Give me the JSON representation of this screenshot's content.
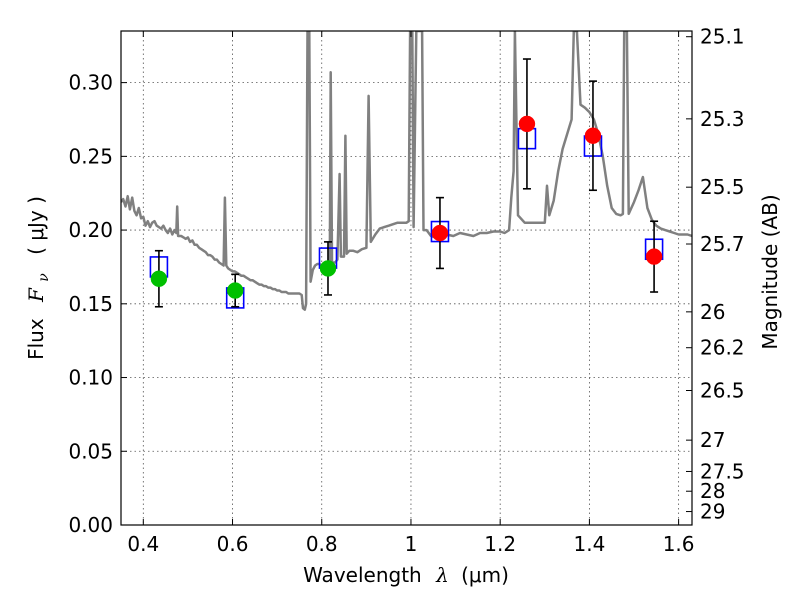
{
  "chart_data": {
    "type": "scatter",
    "xlabel_prefix": "Wavelength",
    "xlabel_symbol": "λ",
    "xlabel_unit": "(μm)",
    "ylabel_prefix": "Flux",
    "ylabel_symbol": "F",
    "ylabel_subscript": "ν",
    "ylabel_unit": "( μJy )",
    "y2label": "Magnitude (AB)",
    "xlim": [
      0.35,
      1.63
    ],
    "ylim": [
      0.0,
      0.335
    ],
    "grid": true,
    "x_ticks": [
      {
        "value": 0.4,
        "label": "0.4"
      },
      {
        "value": 0.6,
        "label": "0.6"
      },
      {
        "value": 0.8,
        "label": "0.8"
      },
      {
        "value": 1.0,
        "label": "1"
      },
      {
        "value": 1.2,
        "label": "1.2"
      },
      {
        "value": 1.4,
        "label": "1.4"
      },
      {
        "value": 1.6,
        "label": "1.6"
      }
    ],
    "y_ticks": [
      {
        "value": 0.0,
        "label": "0.00"
      },
      {
        "value": 0.05,
        "label": "0.05"
      },
      {
        "value": 0.1,
        "label": "0.10"
      },
      {
        "value": 0.15,
        "label": "0.15"
      },
      {
        "value": 0.2,
        "label": "0.20"
      },
      {
        "value": 0.25,
        "label": "0.25"
      },
      {
        "value": 0.3,
        "label": "0.30"
      }
    ],
    "mag_ticks": [
      {
        "value": 25.1,
        "label": "25.1"
      },
      {
        "value": 25.3,
        "label": "25.3"
      },
      {
        "value": 25.5,
        "label": "25.5"
      },
      {
        "value": 25.7,
        "label": "25.7"
      },
      {
        "value": 26.0,
        "label": "26"
      },
      {
        "value": 26.2,
        "label": "26.2"
      },
      {
        "value": 26.5,
        "label": "26.5"
      },
      {
        "value": 27.0,
        "label": "27"
      },
      {
        "value": 27.5,
        "label": "27.5"
      },
      {
        "value": 28.0,
        "label": "28"
      },
      {
        "value": 29.0,
        "label": "29"
      }
    ],
    "observed": [
      {
        "x": 0.435,
        "y": 0.167,
        "err": 0.019,
        "color": "#00c000"
      },
      {
        "x": 0.606,
        "y": 0.159,
        "err": 0.011,
        "color": "#00c000"
      },
      {
        "x": 0.814,
        "y": 0.174,
        "err": 0.018,
        "color": "#00c000"
      },
      {
        "x": 1.065,
        "y": 0.198,
        "err": 0.024,
        "color": "#ff0000"
      },
      {
        "x": 1.26,
        "y": 0.272,
        "err": 0.044,
        "color": "#ff0000"
      },
      {
        "x": 1.408,
        "y": 0.264,
        "err": 0.037,
        "color": "#ff0000"
      },
      {
        "x": 1.545,
        "y": 0.182,
        "err": 0.024,
        "color": "#ff0000"
      }
    ],
    "model_points": [
      {
        "x": 0.435,
        "y": 0.175
      },
      {
        "x": 0.606,
        "y": 0.154
      },
      {
        "x": 0.814,
        "y": 0.181
      },
      {
        "x": 1.065,
        "y": 0.199
      },
      {
        "x": 1.26,
        "y": 0.262
      },
      {
        "x": 1.408,
        "y": 0.257
      },
      {
        "x": 1.545,
        "y": 0.187
      }
    ],
    "spectrum": [
      [
        0.35,
        0.219
      ],
      [
        0.355,
        0.221
      ],
      [
        0.36,
        0.216
      ],
      [
        0.365,
        0.223
      ],
      [
        0.37,
        0.214
      ],
      [
        0.375,
        0.222
      ],
      [
        0.38,
        0.213
      ],
      [
        0.385,
        0.21
      ],
      [
        0.39,
        0.215
      ],
      [
        0.395,
        0.208
      ],
      [
        0.4,
        0.209
      ],
      [
        0.405,
        0.203
      ],
      [
        0.41,
        0.206
      ],
      [
        0.415,
        0.202
      ],
      [
        0.42,
        0.205
      ],
      [
        0.425,
        0.206
      ],
      [
        0.43,
        0.203
      ],
      [
        0.435,
        0.202
      ],
      [
        0.44,
        0.201
      ],
      [
        0.445,
        0.203
      ],
      [
        0.45,
        0.2
      ],
      [
        0.455,
        0.198
      ],
      [
        0.46,
        0.201
      ],
      [
        0.465,
        0.197
      ],
      [
        0.47,
        0.2
      ],
      [
        0.474,
        0.198
      ],
      [
        0.476,
        0.216
      ],
      [
        0.478,
        0.196
      ],
      [
        0.485,
        0.196
      ],
      [
        0.49,
        0.195
      ],
      [
        0.495,
        0.194
      ],
      [
        0.5,
        0.195
      ],
      [
        0.505,
        0.192
      ],
      [
        0.51,
        0.193
      ],
      [
        0.515,
        0.19
      ],
      [
        0.52,
        0.19
      ],
      [
        0.525,
        0.188
      ],
      [
        0.53,
        0.187
      ],
      [
        0.535,
        0.186
      ],
      [
        0.54,
        0.185
      ],
      [
        0.545,
        0.183
      ],
      [
        0.55,
        0.183
      ],
      [
        0.555,
        0.182
      ],
      [
        0.56,
        0.18
      ],
      [
        0.565,
        0.18
      ],
      [
        0.57,
        0.178
      ],
      [
        0.575,
        0.177
      ],
      [
        0.58,
        0.176
      ],
      [
        0.583,
        0.222
      ],
      [
        0.586,
        0.176
      ],
      [
        0.59,
        0.174
      ],
      [
        0.595,
        0.173
      ],
      [
        0.6,
        0.172
      ],
      [
        0.605,
        0.172
      ],
      [
        0.61,
        0.171
      ],
      [
        0.615,
        0.17
      ],
      [
        0.62,
        0.169
      ],
      [
        0.625,
        0.169
      ],
      [
        0.63,
        0.168
      ],
      [
        0.635,
        0.167
      ],
      [
        0.64,
        0.166
      ],
      [
        0.645,
        0.166
      ],
      [
        0.65,
        0.165
      ],
      [
        0.655,
        0.164
      ],
      [
        0.66,
        0.163
      ],
      [
        0.665,
        0.163
      ],
      [
        0.67,
        0.162
      ],
      [
        0.675,
        0.162
      ],
      [
        0.68,
        0.161
      ],
      [
        0.685,
        0.161
      ],
      [
        0.69,
        0.16
      ],
      [
        0.695,
        0.16
      ],
      [
        0.7,
        0.159
      ],
      [
        0.705,
        0.159
      ],
      [
        0.71,
        0.158
      ],
      [
        0.715,
        0.158
      ],
      [
        0.72,
        0.158
      ],
      [
        0.725,
        0.157
      ],
      [
        0.73,
        0.157
      ],
      [
        0.735,
        0.157
      ],
      [
        0.74,
        0.157
      ],
      [
        0.745,
        0.157
      ],
      [
        0.75,
        0.157
      ],
      [
        0.755,
        0.156
      ],
      [
        0.758,
        0.147
      ],
      [
        0.762,
        0.146
      ],
      [
        0.765,
        0.15
      ],
      [
        0.768,
        0.335
      ],
      [
        0.772,
        0.335
      ],
      [
        0.775,
        0.165
      ],
      [
        0.78,
        0.173
      ],
      [
        0.785,
        0.176
      ],
      [
        0.79,
        0.177
      ],
      [
        0.795,
        0.177
      ],
      [
        0.8,
        0.176
      ],
      [
        0.805,
        0.176
      ],
      [
        0.81,
        0.176
      ],
      [
        0.815,
        0.176
      ],
      [
        0.818,
        0.176
      ],
      [
        0.82,
        0.307
      ],
      [
        0.823,
        0.178
      ],
      [
        0.83,
        0.178
      ],
      [
        0.835,
        0.18
      ],
      [
        0.84,
        0.238
      ],
      [
        0.843,
        0.182
      ],
      [
        0.85,
        0.182
      ],
      [
        0.853,
        0.264
      ],
      [
        0.856,
        0.184
      ],
      [
        0.862,
        0.186
      ],
      [
        0.87,
        0.186
      ],
      [
        0.88,
        0.185
      ],
      [
        0.89,
        0.187
      ],
      [
        0.9,
        0.188
      ],
      [
        0.905,
        0.291
      ],
      [
        0.91,
        0.192
      ],
      [
        0.92,
        0.197
      ],
      [
        0.93,
        0.201
      ],
      [
        0.94,
        0.202
      ],
      [
        0.95,
        0.203
      ],
      [
        0.96,
        0.204
      ],
      [
        0.97,
        0.205
      ],
      [
        0.98,
        0.205
      ],
      [
        0.99,
        0.205
      ],
      [
        0.995,
        0.206
      ],
      [
        0.998,
        0.335
      ],
      [
        1.003,
        0.335
      ],
      [
        1.006,
        0.202
      ],
      [
        1.012,
        0.335
      ],
      [
        1.018,
        0.335
      ],
      [
        1.025,
        0.335
      ],
      [
        1.028,
        0.2
      ],
      [
        1.035,
        0.2
      ],
      [
        1.045,
        0.196
      ],
      [
        1.055,
        0.195
      ],
      [
        1.065,
        0.196
      ],
      [
        1.08,
        0.197
      ],
      [
        1.095,
        0.196
      ],
      [
        1.11,
        0.198
      ],
      [
        1.125,
        0.197
      ],
      [
        1.14,
        0.196
      ],
      [
        1.155,
        0.198
      ],
      [
        1.17,
        0.198
      ],
      [
        1.185,
        0.199
      ],
      [
        1.2,
        0.199
      ],
      [
        1.21,
        0.198
      ],
      [
        1.22,
        0.2
      ],
      [
        1.225,
        0.222
      ],
      [
        1.23,
        0.24
      ],
      [
        1.233,
        0.335
      ],
      [
        1.24,
        0.21
      ],
      [
        1.255,
        0.205
      ],
      [
        1.27,
        0.205
      ],
      [
        1.285,
        0.205
      ],
      [
        1.3,
        0.205
      ],
      [
        1.305,
        0.23
      ],
      [
        1.31,
        0.21
      ],
      [
        1.32,
        0.22
      ],
      [
        1.33,
        0.24
      ],
      [
        1.34,
        0.255
      ],
      [
        1.35,
        0.265
      ],
      [
        1.36,
        0.275
      ],
      [
        1.365,
        0.335
      ],
      [
        1.372,
        0.335
      ],
      [
        1.38,
        0.285
      ],
      [
        1.39,
        0.283
      ],
      [
        1.4,
        0.28
      ],
      [
        1.41,
        0.275
      ],
      [
        1.42,
        0.265
      ],
      [
        1.43,
        0.25
      ],
      [
        1.44,
        0.23
      ],
      [
        1.45,
        0.215
      ],
      [
        1.46,
        0.211
      ],
      [
        1.47,
        0.21
      ],
      [
        1.475,
        0.211
      ],
      [
        1.478,
        0.335
      ],
      [
        1.484,
        0.335
      ],
      [
        1.488,
        0.211
      ],
      [
        1.5,
        0.219
      ],
      [
        1.51,
        0.227
      ],
      [
        1.52,
        0.236
      ],
      [
        1.53,
        0.215
      ],
      [
        1.54,
        0.207
      ],
      [
        1.55,
        0.203
      ],
      [
        1.56,
        0.201
      ],
      [
        1.57,
        0.2
      ],
      [
        1.58,
        0.199
      ],
      [
        1.59,
        0.198
      ],
      [
        1.6,
        0.197
      ],
      [
        1.61,
        0.197
      ],
      [
        1.62,
        0.197
      ],
      [
        1.63,
        0.196
      ]
    ],
    "colors": {
      "spectrum": "#808080",
      "model_box": "#0000ff",
      "errorbar": "#000000",
      "grid": "#555555"
    }
  }
}
